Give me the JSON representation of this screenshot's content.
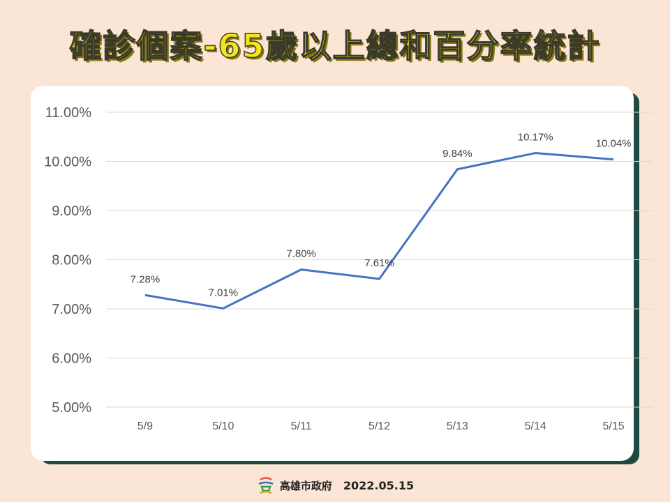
{
  "title": "確診個案-65歲以上總和百分率統計",
  "footer": {
    "org": "高雄市政府",
    "date": "2022.05.15",
    "logo_icon": "kaohsiung-logo-icon"
  },
  "colors": {
    "line": "#4472c4",
    "grid": "#d9d9d9",
    "card_shadow": "#1f4a42",
    "background": "#fbe5d6",
    "title": "#f5e51c"
  },
  "chart_data": {
    "type": "line",
    "categories": [
      "5/9",
      "5/10",
      "5/11",
      "5/12",
      "5/13",
      "5/14",
      "5/15"
    ],
    "values": [
      7.28,
      7.01,
      7.8,
      7.61,
      9.84,
      10.17,
      10.04
    ],
    "data_labels": [
      "7.28%",
      "7.01%",
      "7.80%",
      "7.61%",
      "9.84%",
      "10.17%",
      "10.04%"
    ],
    "y_ticks": [
      5,
      6,
      7,
      8,
      9,
      10,
      11
    ],
    "y_tick_labels": [
      "5.00%",
      "6.00%",
      "7.00%",
      "8.00%",
      "9.00%",
      "10.00%",
      "11.00%"
    ],
    "ylim": [
      5,
      11
    ],
    "grid": true,
    "legend": "none"
  }
}
